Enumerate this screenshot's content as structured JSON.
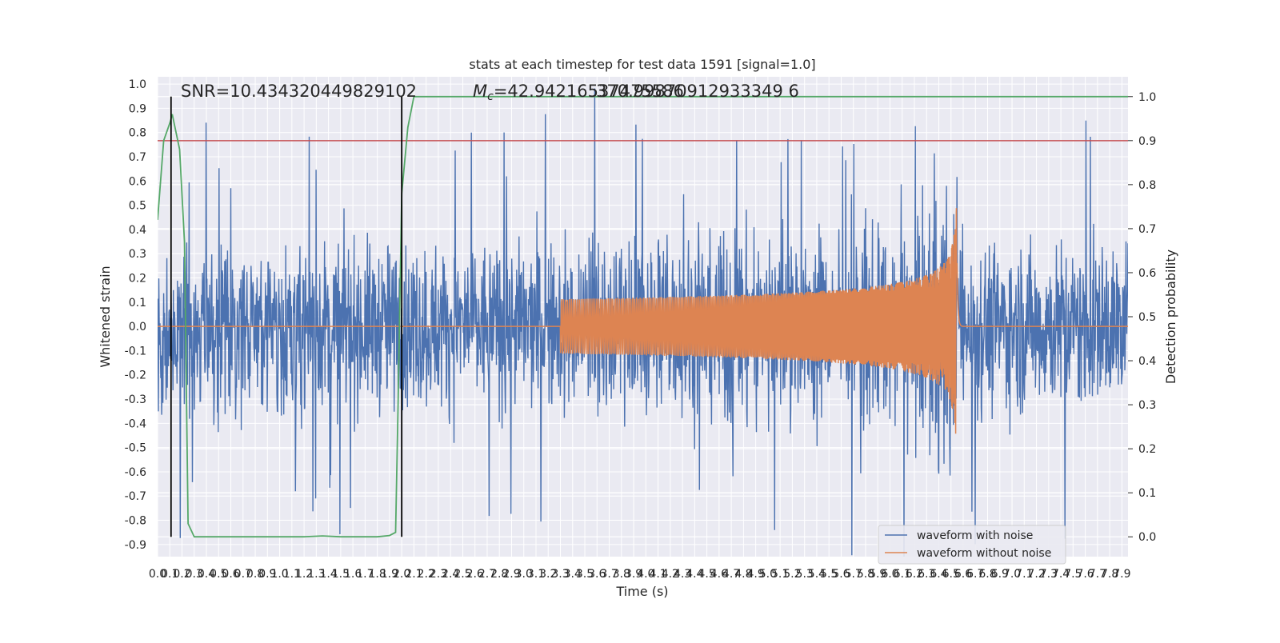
{
  "chart_data": {
    "type": "line",
    "title": "stats at each timestep for test data 1591 [signal=1.0]",
    "xlabel": "Time (s)",
    "ylabel": "Whitened strain",
    "y2label": "Detection probability",
    "xlim": [
      0.0,
      7.95
    ],
    "ylim": [
      -0.95,
      1.03
    ],
    "y2lim": [
      -0.045,
      1.045
    ],
    "x_ticks": [
      "0.0",
      "0.1",
      "0.2",
      "0.3",
      "0.4",
      "0.5",
      "0.6",
      "0.7",
      "0.8",
      "0.9",
      "1.0",
      "1.1",
      "1.2",
      "1.3",
      "1.4",
      "1.5",
      "1.6",
      "1.7",
      "1.8",
      "1.9",
      "2.0",
      "2.1",
      "2.2",
      "2.3",
      "2.4",
      "2.5",
      "2.6",
      "2.7",
      "2.8",
      "2.9",
      "3.0",
      "3.1",
      "3.2",
      "3.3",
      "3.4",
      "3.5",
      "3.6",
      "3.7",
      "3.8",
      "3.9",
      "4.0",
      "4.1",
      "4.2",
      "4.3",
      "4.4",
      "4.5",
      "4.6",
      "4.7",
      "4.8",
      "4.9",
      "5.0",
      "5.1",
      "5.2",
      "5.3",
      "5.4",
      "5.5",
      "5.6",
      "5.7",
      "5.8",
      "5.9",
      "6.0",
      "6.1",
      "6.2",
      "6.3",
      "6.4",
      "6.5",
      "6.6",
      "6.7",
      "6.8",
      "6.9",
      "7.0",
      "7.1",
      "7.2",
      "7.3",
      "7.4",
      "7.5",
      "7.6",
      "7.7",
      "7.8",
      "7.9"
    ],
    "y_ticks": [
      "-0.9",
      "-0.8",
      "-0.7",
      "-0.6",
      "-0.5",
      "-0.4",
      "-0.3",
      "-0.2",
      "-0.1",
      "0.0",
      "0.1",
      "0.2",
      "0.3",
      "0.4",
      "0.5",
      "0.6",
      "0.7",
      "0.8",
      "0.9",
      "1.0"
    ],
    "y2_ticks": [
      "0.0",
      "0.1",
      "0.2",
      "0.3",
      "0.4",
      "0.5",
      "0.6",
      "0.7",
      "0.8",
      "0.9",
      "1.0"
    ],
    "grid": true,
    "legend_position": "lower-right",
    "series": [
      {
        "name": "waveform with noise",
        "color": "#4c72b0",
        "axis": "left",
        "description_values": "dense noise band approx ±0.45, peaks to ~1.0 near t=6.0 and t=6.55"
      },
      {
        "name": "waveform without noise",
        "color": "#dd8452",
        "axis": "left",
        "chirp": {
          "start": 3.3,
          "merger": 6.55,
          "peak_amplitude": 0.6,
          "end": 6.6
        }
      },
      {
        "name": "",
        "color": "#55a868",
        "axis": "right",
        "x": [
          0.0,
          0.05,
          0.1,
          0.12,
          0.18,
          0.22,
          0.25,
          0.3,
          0.4,
          1.2,
          1.35,
          1.5,
          1.8,
          1.9,
          1.95,
          1.97,
          2.0,
          2.05,
          2.1,
          7.95
        ],
        "values": [
          0.72,
          0.9,
          0.94,
          0.96,
          0.88,
          0.67,
          0.03,
          0.0,
          0.0,
          0.0,
          0.002,
          0.0,
          0.0,
          0.003,
          0.01,
          0.3,
          0.78,
          0.93,
          1.0,
          1.0
        ]
      }
    ],
    "threshold_line": {
      "value": 0.9,
      "axis": "right",
      "color": "#c44e52"
    },
    "vertical_lines": [
      {
        "x": 0.11,
        "color": "#000000"
      },
      {
        "x": 2.0,
        "color": "#000000"
      }
    ],
    "annotations": {
      "snr": "SNR=10.434320449829102",
      "mc": "=42.94216537475586",
      "mc_symbol": "M",
      "mc_subscript": "c",
      "overlap": "370.99870912933349 6"
    }
  }
}
